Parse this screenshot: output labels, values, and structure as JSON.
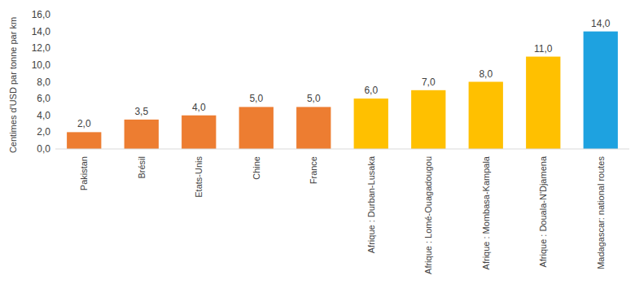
{
  "chart_data": {
    "type": "bar",
    "y_label": "Centimes d'USD par tonne par km",
    "categories": [
      "Pakistan",
      "Brésil",
      "Etats-Unis",
      "Chine",
      "France",
      "Afrique : Durban-Lusaka",
      "Afrique : Lomé-Ouagadougou",
      "Afrique : Mombasa-Kampala",
      "Afrique : Douala-N'Djamena",
      "Madagascar: national routes"
    ],
    "values": [
      2.0,
      3.5,
      4.0,
      5.0,
      5.0,
      6.0,
      7.0,
      8.0,
      11.0,
      14.0
    ],
    "value_labels": [
      "2,0",
      "3,5",
      "4,0",
      "5,0",
      "5,0",
      "6,0",
      "7,0",
      "8,0",
      "11,0",
      "14,0"
    ],
    "colors": [
      "#ed7d31",
      "#ed7d31",
      "#ed7d31",
      "#ed7d31",
      "#ed7d31",
      "#ffc000",
      "#ffc000",
      "#ffc000",
      "#ffc000",
      "#1ea2e0"
    ],
    "ylim": [
      0,
      16
    ],
    "yticks": [
      {
        "value": 0,
        "label": "0,0"
      },
      {
        "value": 2,
        "label": "2,0"
      },
      {
        "value": 4,
        "label": "4,0"
      },
      {
        "value": 6,
        "label": "6,0"
      },
      {
        "value": 8,
        "label": "8,0"
      },
      {
        "value": 10,
        "label": "10,0"
      },
      {
        "value": 12,
        "label": "12,0"
      },
      {
        "value": 14,
        "label": "14,0"
      },
      {
        "value": 16,
        "label": "16,0"
      }
    ],
    "grid": false,
    "data_labels": true
  }
}
